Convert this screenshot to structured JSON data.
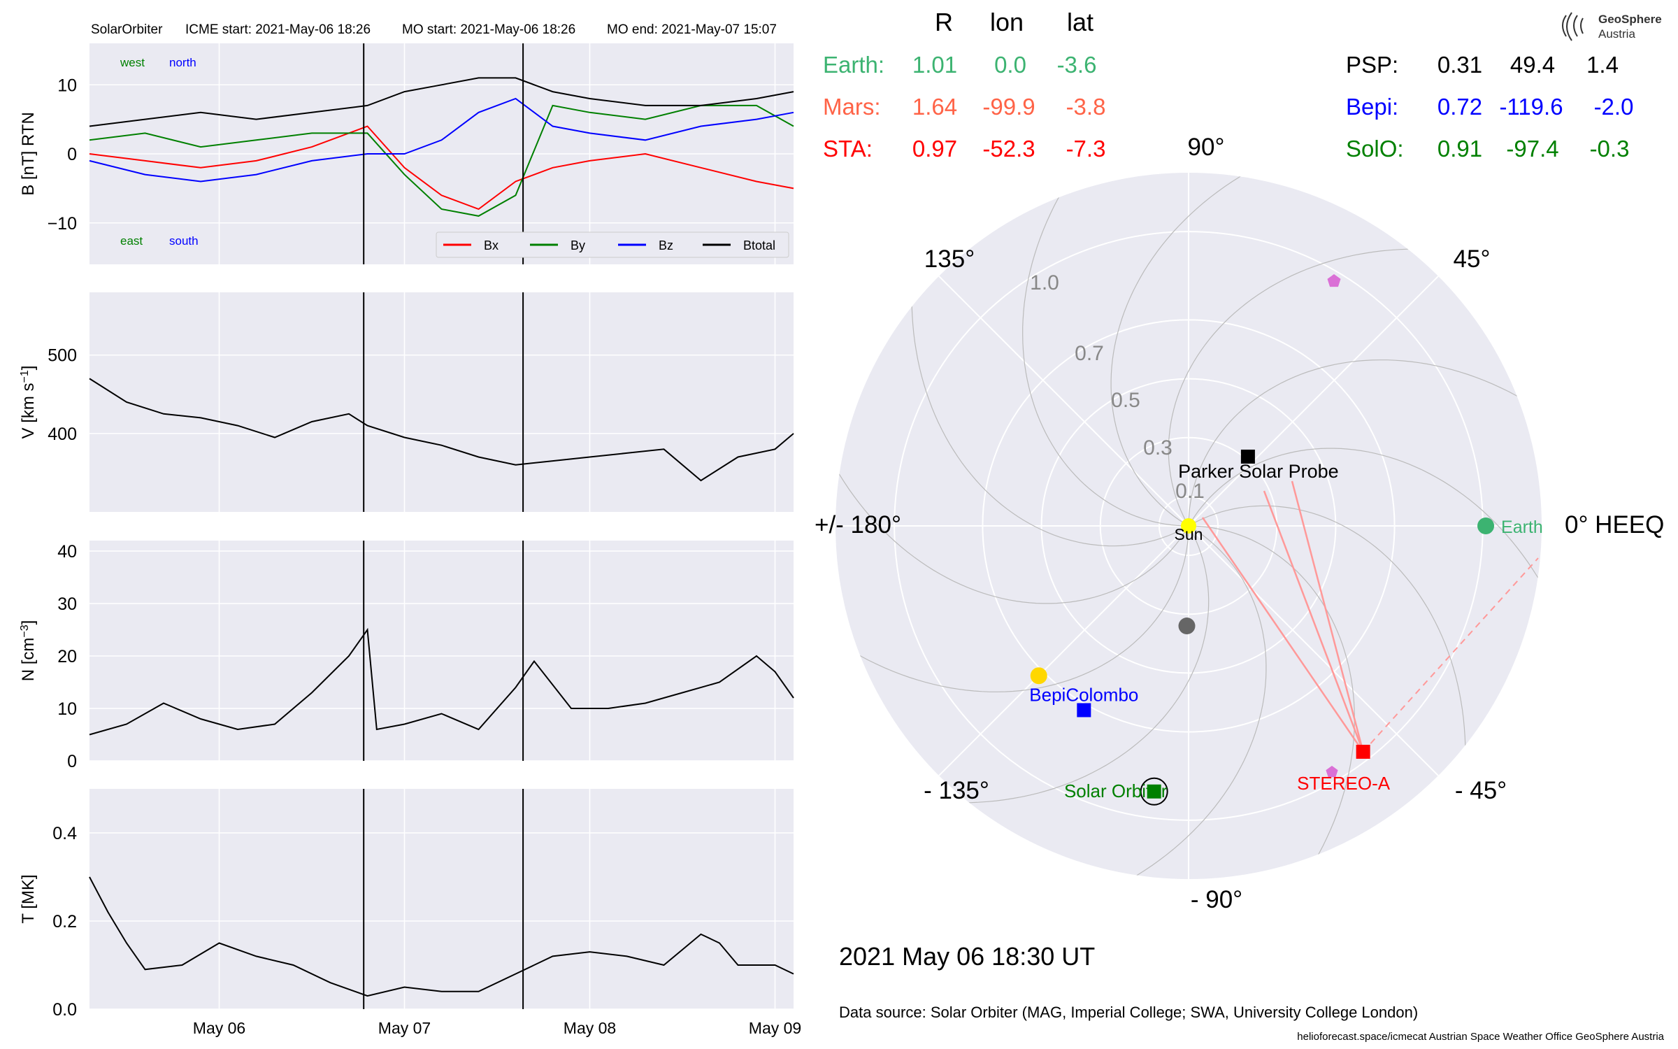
{
  "header": {
    "spacecraft": "SolarOrbiter",
    "icme_start": "ICME start: 2021-May-06 18:26",
    "mo_start": "MO start: 2021-May-06 18:26",
    "mo_end": "MO end: 2021-May-07 15:07"
  },
  "logo": {
    "line1": "GeoSphere",
    "line2": "Austria"
  },
  "colors": {
    "panel_bg": "#eaeaf2",
    "grid": "#ffffff",
    "bx": "#ff0000",
    "by": "#008000",
    "bz": "#0000ff",
    "btotal": "#000000",
    "earth": "#3cb371",
    "mars": "#ff6347",
    "sta": "#ff0000",
    "psp": "#000000",
    "bepi": "#0000ff",
    "solo": "#008000",
    "sun": "#ffff00",
    "venus": "#ffd700",
    "mercury": "#666666",
    "pink": "#da70d6"
  },
  "chart_data": [
    {
      "type": "line",
      "panel": "magnetic_field",
      "ylabel": "B [nT] RTN",
      "ylim": [
        -16,
        16
      ],
      "yticks": [
        "10",
        "0",
        "−10"
      ],
      "ytick_values": [
        10,
        0,
        -10
      ],
      "annotations": {
        "west": "west",
        "north": "north",
        "east": "east",
        "south": "south"
      },
      "legend": [
        "Bx",
        "By",
        "Bz",
        "Btotal"
      ],
      "legend_placement": "lower-right",
      "series": [
        {
          "name": "Bx",
          "x": [
            5.3,
            5.6,
            5.9,
            6.2,
            6.5,
            6.8,
            7.0,
            7.2,
            7.4,
            7.6,
            7.8,
            8.0,
            8.3,
            8.6,
            8.9,
            9.1
          ],
          "values": [
            0,
            -1,
            -2,
            -1,
            1,
            4,
            -2,
            -6,
            -8,
            -4,
            -2,
            -1,
            0,
            -2,
            -4,
            -5
          ]
        },
        {
          "name": "By",
          "x": [
            5.3,
            5.6,
            5.9,
            6.2,
            6.5,
            6.8,
            7.0,
            7.2,
            7.4,
            7.6,
            7.8,
            8.0,
            8.3,
            8.6,
            8.9,
            9.1
          ],
          "values": [
            2,
            3,
            1,
            2,
            3,
            3,
            -3,
            -8,
            -9,
            -6,
            7,
            6,
            5,
            7,
            7,
            4
          ]
        },
        {
          "name": "Bz",
          "x": [
            5.3,
            5.6,
            5.9,
            6.2,
            6.5,
            6.8,
            7.0,
            7.2,
            7.4,
            7.6,
            7.8,
            8.0,
            8.3,
            8.6,
            8.9,
            9.1
          ],
          "values": [
            -1,
            -3,
            -4,
            -3,
            -1,
            0,
            0,
            2,
            6,
            8,
            4,
            3,
            2,
            4,
            5,
            6
          ]
        },
        {
          "name": "Btotal",
          "x": [
            5.3,
            5.6,
            5.9,
            6.2,
            6.5,
            6.8,
            7.0,
            7.2,
            7.4,
            7.6,
            7.8,
            8.0,
            8.3,
            8.6,
            8.9,
            9.1
          ],
          "values": [
            4,
            5,
            6,
            5,
            6,
            7,
            9,
            10,
            11,
            11,
            9,
            8,
            7,
            7,
            8,
            9
          ]
        }
      ]
    },
    {
      "type": "line",
      "panel": "speed",
      "ylabel": "V [km s",
      "ylabel_exp": "−1",
      "ylabel_tail": "]",
      "ylim": [
        300,
        580
      ],
      "yticks": [
        "500",
        "400"
      ],
      "ytick_values": [
        500,
        400
      ],
      "series": [
        {
          "name": "V",
          "x": [
            5.3,
            5.5,
            5.7,
            5.9,
            6.1,
            6.3,
            6.5,
            6.7,
            6.8,
            7.0,
            7.2,
            7.4,
            7.6,
            7.8,
            8.0,
            8.2,
            8.4,
            8.6,
            8.8,
            9.0,
            9.1
          ],
          "values": [
            470,
            440,
            425,
            420,
            410,
            395,
            415,
            425,
            410,
            395,
            385,
            370,
            360,
            365,
            370,
            375,
            380,
            340,
            370,
            380,
            400
          ]
        }
      ]
    },
    {
      "type": "line",
      "panel": "density",
      "ylabel": "N [cm",
      "ylabel_exp": "−3",
      "ylabel_tail": "]",
      "ylim": [
        0,
        42
      ],
      "yticks": [
        "40",
        "30",
        "20",
        "10",
        "0"
      ],
      "ytick_values": [
        40,
        30,
        20,
        10,
        0
      ],
      "series": [
        {
          "name": "N",
          "x": [
            5.3,
            5.5,
            5.7,
            5.9,
            6.1,
            6.3,
            6.5,
            6.7,
            6.8,
            6.85,
            7.0,
            7.2,
            7.4,
            7.6,
            7.7,
            7.9,
            8.1,
            8.3,
            8.5,
            8.7,
            8.9,
            9.0,
            9.1
          ],
          "values": [
            5,
            7,
            11,
            8,
            6,
            7,
            13,
            20,
            25,
            6,
            7,
            9,
            6,
            14,
            19,
            10,
            10,
            11,
            13,
            15,
            20,
            17,
            12
          ]
        }
      ]
    },
    {
      "type": "line",
      "panel": "temperature",
      "ylabel": "T [MK]",
      "ylim": [
        0,
        0.5
      ],
      "yticks": [
        "0.4",
        "0.2",
        "0.0"
      ],
      "ytick_values": [
        0.4,
        0.2,
        0.0
      ],
      "xticks": [
        "May 06",
        "May 07",
        "May 08",
        "May 09"
      ],
      "xtick_values": [
        6,
        7,
        8,
        9
      ],
      "series": [
        {
          "name": "T",
          "x": [
            5.3,
            5.4,
            5.5,
            5.6,
            5.8,
            6.0,
            6.2,
            6.4,
            6.6,
            6.8,
            7.0,
            7.2,
            7.4,
            7.6,
            7.8,
            8.0,
            8.2,
            8.4,
            8.6,
            8.7,
            8.8,
            9.0,
            9.1
          ],
          "values": [
            0.3,
            0.22,
            0.15,
            0.09,
            0.1,
            0.15,
            0.12,
            0.1,
            0.06,
            0.03,
            0.05,
            0.04,
            0.04,
            0.08,
            0.12,
            0.13,
            0.12,
            0.1,
            0.17,
            0.15,
            0.1,
            0.1,
            0.08
          ]
        }
      ]
    },
    {
      "type": "polar",
      "panel": "orbit_plot",
      "radial_ticks": [
        "1.0",
        "0.7",
        "0.5",
        "0.3",
        "0.1"
      ],
      "radial_values": [
        1.0,
        0.7,
        0.5,
        0.3,
        0.1
      ],
      "angle_labels": {
        "a0": "0° HEEQ",
        "a45": "45°",
        "a90": "90°",
        "a135": "135°",
        "a180": "+/- 180°",
        "am135": "- 135°",
        "am90": "- 90°",
        "am45": "- 45°"
      },
      "angle_values": [
        0,
        45,
        90,
        135,
        180,
        -135,
        -90,
        -45
      ],
      "bodies": [
        {
          "name": "Sun",
          "label": "Sun",
          "r": 0.0,
          "lon": 0.0,
          "marker": "circle",
          "color": "#ffff00"
        },
        {
          "name": "Earth",
          "label": "Earth",
          "r": 1.01,
          "lon": 0.0,
          "marker": "circle",
          "color": "#3cb371"
        },
        {
          "name": "Parker Solar Probe",
          "label": "Parker Solar Probe",
          "r": 0.31,
          "lon": 49.4,
          "marker": "square",
          "color": "#000000"
        },
        {
          "name": "BepiColombo",
          "label": "BepiColombo",
          "r": 0.72,
          "lon": -119.6,
          "marker": "square",
          "color": "#0000ff"
        },
        {
          "name": "Solar Orbiter",
          "label": "Solar Orbiter",
          "r": 0.91,
          "lon": -97.4,
          "marker": "square",
          "color": "#008000"
        },
        {
          "name": "STEREO-A",
          "label": "STEREO-A",
          "r": 0.97,
          "lon": -52.3,
          "marker": "square",
          "color": "#ff0000"
        },
        {
          "name": "Venus",
          "label": "",
          "r": 0.72,
          "lon": -135.0,
          "marker": "circle",
          "color": "#ffd700"
        },
        {
          "name": "Mercury",
          "label": "",
          "r": 0.34,
          "lon": -91.0,
          "marker": "circle",
          "color": "#666666"
        }
      ]
    }
  ],
  "positions": {
    "headers": [
      "R",
      "lon",
      "lat"
    ],
    "left": [
      {
        "name": "Earth:",
        "r": "1.01",
        "lon": "0.0",
        "lat": "-3.6"
      },
      {
        "name": "Mars:",
        "r": "1.64",
        "lon": "-99.9",
        "lat": "-3.8"
      },
      {
        "name": "STA:",
        "r": "0.97",
        "lon": "-52.3",
        "lat": "-7.3"
      }
    ],
    "right": [
      {
        "name": "PSP:",
        "r": "0.31",
        "lon": "49.4",
        "lat": "1.4"
      },
      {
        "name": "Bepi:",
        "r": "0.72",
        "lon": "-119.6",
        "lat": "-2.0"
      },
      {
        "name": "SolO:",
        "r": "0.91",
        "lon": "-97.4",
        "lat": "-0.3"
      }
    ]
  },
  "footer": {
    "datetime": "2021 May 06  18:30 UT",
    "source": "Data source: Solar Orbiter (MAG, Imperial College; SWA, University College London)",
    "credits": "helioforecast.space/icmecat   Austrian Space Weather Office   GeoSphere Austria"
  }
}
